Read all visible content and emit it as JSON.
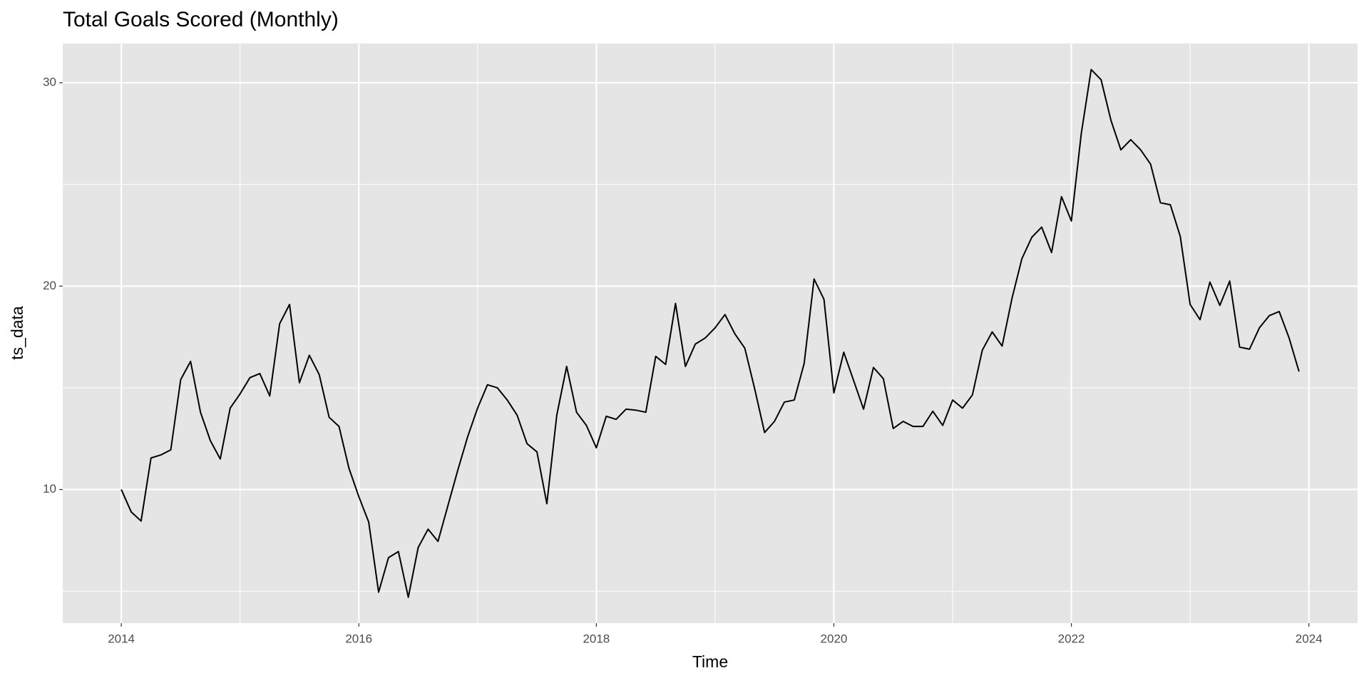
{
  "chart_data": {
    "type": "line",
    "title": "Total Goals Scored (Monthly)",
    "x_label": "Time",
    "y_label": "ts_data",
    "color": "#000000",
    "grid": true,
    "minor_grid": true,
    "panel_color": "#e5e5e5",
    "xlim": [
      2013.507,
      2024.41
    ],
    "xticks": [
      2014,
      2016,
      2018,
      2020,
      2022,
      2024
    ],
    "ylim": [
      3.43,
      31.93
    ],
    "yticks": [
      10,
      20,
      30
    ],
    "x": [
      2014,
      2014.0833,
      2014.1667,
      2014.25,
      2014.3333,
      2014.4167,
      2014.5,
      2014.5833,
      2014.6667,
      2014.75,
      2014.8333,
      2014.9167,
      2015,
      2015.0833,
      2015.1667,
      2015.25,
      2015.3333,
      2015.4167,
      2015.5,
      2015.5833,
      2015.6667,
      2015.75,
      2015.8333,
      2015.9167,
      2016,
      2016.0833,
      2016.1667,
      2016.25,
      2016.3333,
      2016.4167,
      2016.5,
      2016.5833,
      2016.6667,
      2016.75,
      2016.8333,
      2016.9167,
      2017,
      2017.0833,
      2017.1667,
      2017.25,
      2017.3333,
      2017.4167,
      2017.5,
      2017.5833,
      2017.6667,
      2017.75,
      2017.8333,
      2017.9167,
      2018,
      2018.0833,
      2018.1667,
      2018.25,
      2018.3333,
      2018.4167,
      2018.5,
      2018.5833,
      2018.6667,
      2018.75,
      2018.8333,
      2018.9167,
      2019,
      2019.0833,
      2019.1667,
      2019.25,
      2019.3333,
      2019.4167,
      2019.5,
      2019.5833,
      2019.6667,
      2019.75,
      2019.8333,
      2019.9167,
      2020,
      2020.0833,
      2020.1667,
      2020.25,
      2020.3333,
      2020.4167,
      2020.5,
      2020.5833,
      2020.6667,
      2020.75,
      2020.8333,
      2020.9167,
      2021,
      2021.0833,
      2021.1667,
      2021.25,
      2021.3333,
      2021.4167,
      2021.5,
      2021.5833,
      2021.6667,
      2021.75,
      2021.8333,
      2021.9167,
      2022,
      2022.0833,
      2022.1667,
      2022.25,
      2022.3333,
      2022.4167,
      2022.5,
      2022.5833,
      2022.6667,
      2022.75,
      2022.8333,
      2022.9167,
      2023,
      2023.0833,
      2023.1667,
      2023.25,
      2023.3333,
      2023.4167,
      2023.5,
      2023.5833,
      2023.6667,
      2023.75,
      2023.8333,
      2023.9167
    ],
    "values": [
      10.0,
      8.9,
      8.45,
      11.55,
      11.7,
      11.95,
      15.4,
      16.3,
      13.8,
      12.4,
      11.5,
      14.0,
      14.7,
      15.5,
      15.7,
      14.6,
      18.15,
      19.1,
      15.25,
      16.6,
      15.65,
      13.55,
      13.1,
      11.05,
      9.65,
      8.4,
      4.95,
      6.65,
      6.95,
      4.7,
      7.15,
      8.05,
      7.45,
      9.2,
      10.95,
      12.6,
      14.0,
      15.15,
      15.0,
      14.4,
      13.65,
      12.25,
      11.85,
      9.3,
      13.65,
      16.05,
      13.8,
      13.15,
      12.05,
      13.6,
      13.45,
      13.95,
      13.9,
      13.8,
      16.55,
      16.15,
      19.15,
      16.05,
      17.15,
      17.45,
      17.95,
      18.6,
      17.65,
      16.95,
      14.95,
      12.8,
      13.35,
      14.3,
      14.4,
      16.2,
      20.35,
      19.35,
      14.75,
      16.75,
      15.35,
      13.95,
      16.0,
      15.45,
      13.0,
      13.35,
      13.1,
      13.1,
      13.85,
      13.15,
      14.4,
      14.0,
      14.65,
      16.85,
      17.75,
      17.05,
      19.4,
      21.35,
      22.4,
      22.9,
      21.65,
      24.4,
      23.2,
      27.5,
      30.65,
      30.15,
      28.15,
      26.7,
      27.2,
      26.7,
      26.0,
      24.1,
      24.0,
      22.45,
      19.1,
      18.35,
      20.2,
      19.05,
      20.25,
      17.0,
      16.9,
      17.95,
      18.55,
      18.75,
      17.45,
      15.8
    ]
  }
}
